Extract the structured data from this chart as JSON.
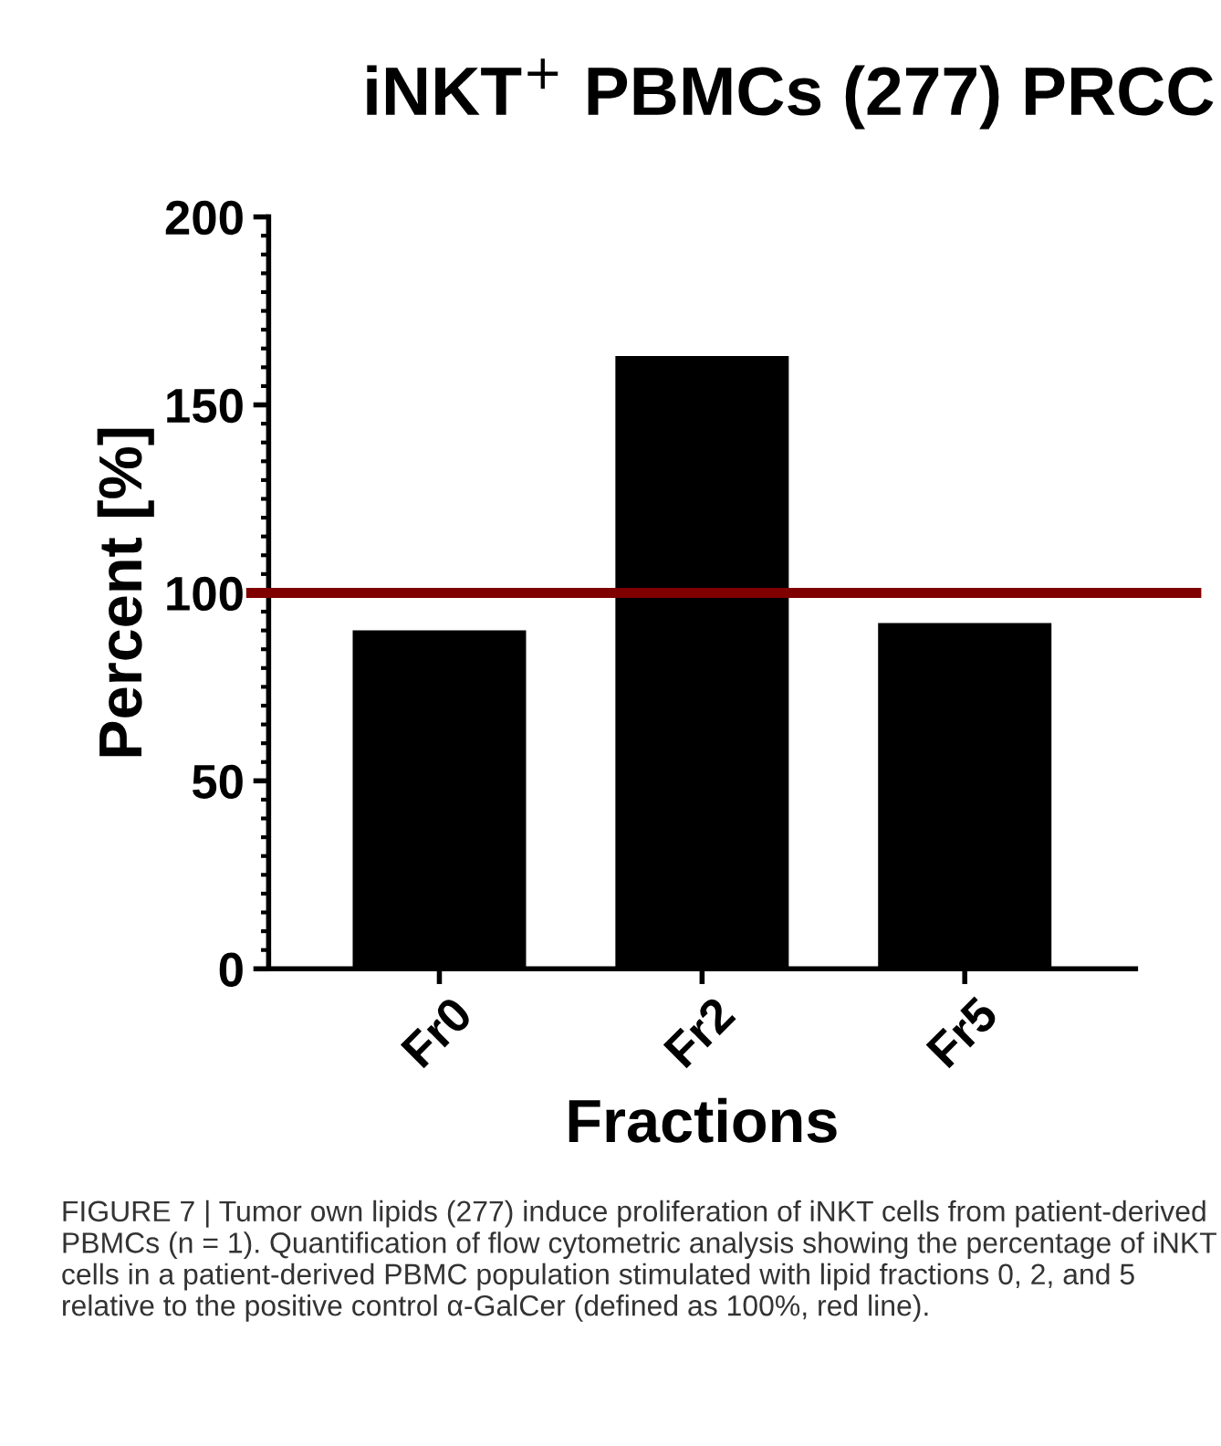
{
  "chart_data": {
    "type": "bar",
    "title": "iNKT$^{+}$ PBMCs (277) PRCC",
    "xlabel": "Fractions",
    "ylabel": "Percent [%]",
    "categories": [
      "Fr0",
      "Fr2",
      "Fr5"
    ],
    "values": [
      90,
      163,
      92
    ],
    "color": "#000000",
    "ylim": [
      0,
      200
    ],
    "yticks": [
      0,
      50,
      100,
      150,
      200
    ],
    "grid": false,
    "ref_lines": [
      {
        "axis": "y",
        "value": 100,
        "label": null,
        "color": "#800000"
      }
    ],
    "annotations": [
      "FIGURE 7 | Tumor own lipids (277) induce proliferation of iNKT cells from patient-derived PBMCs (n = 1). Quantification of flow cytometric analysis showing the percentage of iNKT cells in a patient-derived PBMC population stimulated with lipid fractions 0, 2, and 5 relative to the positive control α-GalCer (defined as 100%, red line)."
    ]
  }
}
